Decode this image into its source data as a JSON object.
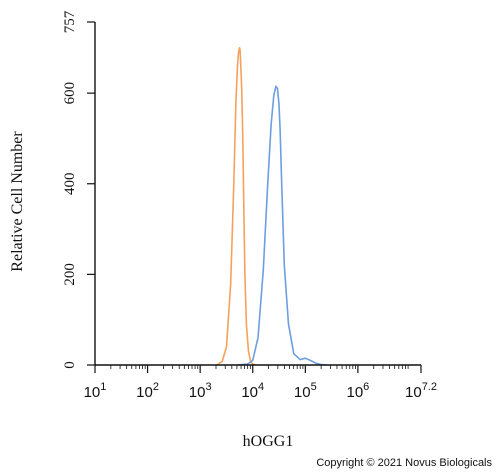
{
  "chart_data": {
    "type": "line",
    "xlabel": "hOGG1",
    "ylabel": "Relative Cell Number",
    "x_scale": "log10",
    "xlim": [
      1,
      7.2
    ],
    "ylim": [
      0,
      757
    ],
    "x_ticks": [
      {
        "base": "10",
        "exp": "1",
        "value": 1
      },
      {
        "base": "10",
        "exp": "2",
        "value": 2
      },
      {
        "base": "10",
        "exp": "3",
        "value": 3
      },
      {
        "base": "10",
        "exp": "4",
        "value": 4
      },
      {
        "base": "10",
        "exp": "5",
        "value": 5
      },
      {
        "base": "10",
        "exp": "6",
        "value": 6
      },
      {
        "base": "10",
        "exp": "7.2",
        "value": 7.2
      }
    ],
    "y_ticks": [
      "0",
      "200",
      "400",
      "600",
      "757"
    ],
    "grid": false,
    "series": [
      {
        "color": "#f5a15c",
        "x": [
          3.32,
          3.42,
          3.5,
          3.58,
          3.64,
          3.68,
          3.71,
          3.73,
          3.75,
          3.76,
          3.77,
          3.79,
          3.81,
          3.83,
          3.85,
          3.88,
          3.92,
          3.96,
          4.0,
          4.05
        ],
        "y": [
          0,
          8,
          40,
          180,
          400,
          580,
          660,
          690,
          700,
          695,
          670,
          610,
          500,
          350,
          200,
          90,
          30,
          8,
          2,
          0
        ]
      },
      {
        "color": "#6d9ee0",
        "x": [
          3.7,
          3.9,
          4.0,
          4.1,
          4.2,
          4.28,
          4.35,
          4.4,
          4.44,
          4.47,
          4.5,
          4.52,
          4.55,
          4.6,
          4.68,
          4.78,
          4.9,
          5.0,
          5.1,
          5.2,
          5.3,
          5.4
        ],
        "y": [
          0,
          2,
          10,
          60,
          210,
          390,
          530,
          595,
          615,
          610,
          575,
          520,
          400,
          220,
          90,
          25,
          12,
          15,
          10,
          4,
          1,
          0
        ]
      }
    ]
  },
  "copyright": "Copyright © 2021 Novus Biologicals"
}
